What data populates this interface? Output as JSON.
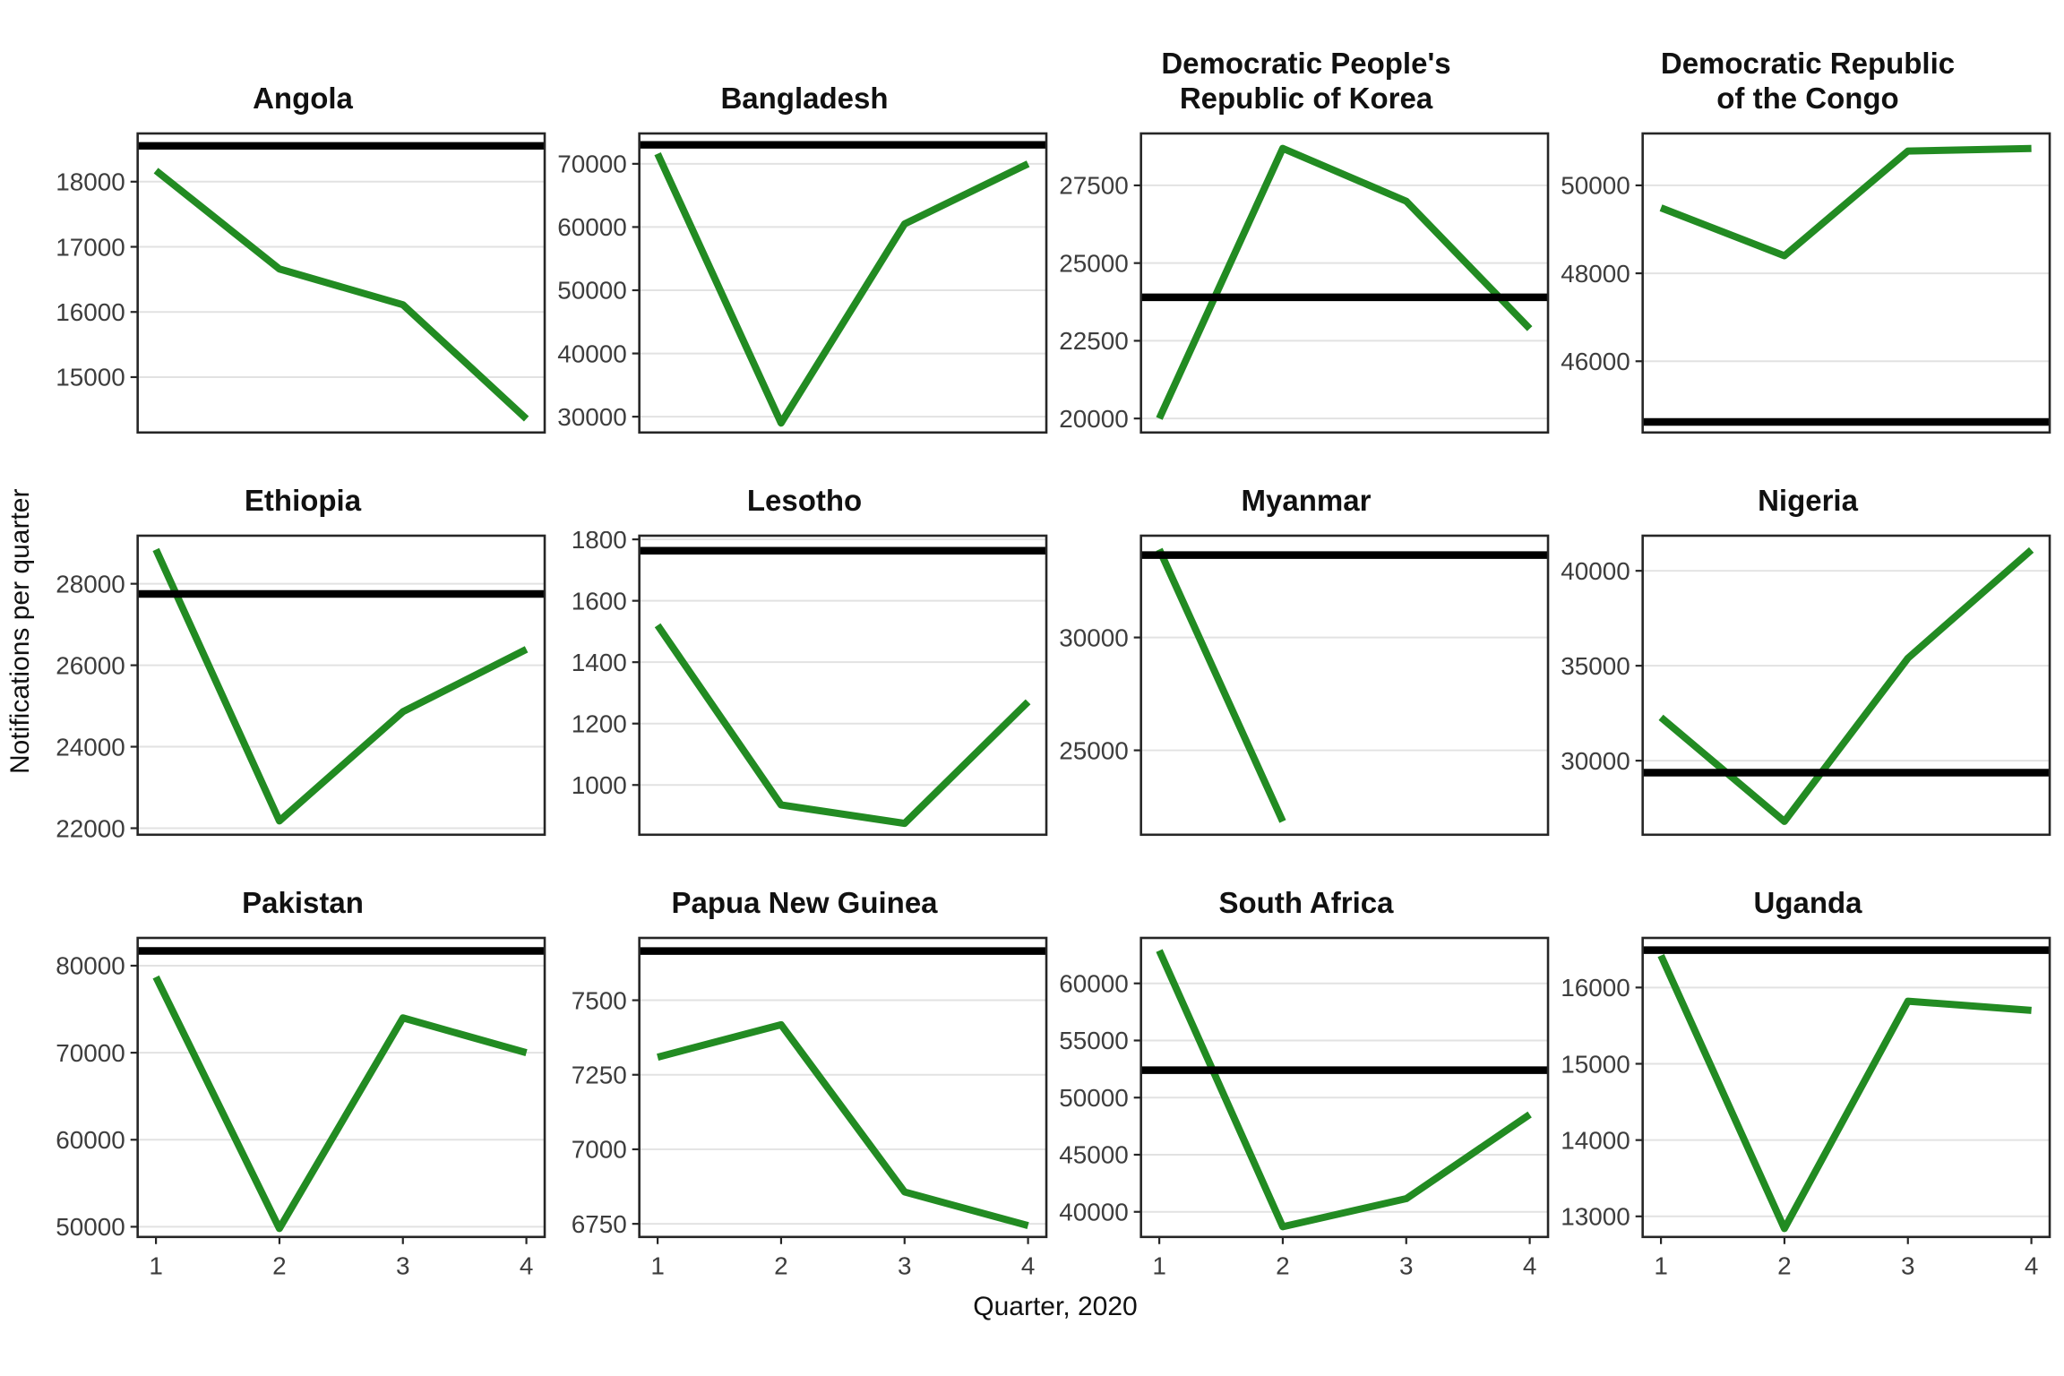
{
  "chart_data": {
    "type": "line",
    "title": "",
    "xlabel": "Quarter, 2020",
    "ylabel": "Notifications per quarter",
    "x": [
      1,
      2,
      3,
      4
    ],
    "x_tick_labels": [
      "1",
      "2",
      "3",
      "4"
    ],
    "legend": "none",
    "grid": "major-horizontal",
    "style": {
      "line_color": "#228B22",
      "reference_line_color": "#000000",
      "gridline_color": "#e2e2e2",
      "panel_border_color": "#262626",
      "tick_label_color": "#3d3d3d",
      "title_color": "#111111"
    },
    "facets": [
      {
        "country": "Angola",
        "values": [
          18170,
          16660,
          16110,
          14360
        ],
        "reference": 18550,
        "yticks": [
          15000,
          16000,
          17000,
          18000
        ],
        "ylim": [
          14150,
          18740
        ]
      },
      {
        "country": "Bangladesh",
        "values": [
          71600,
          29000,
          60500,
          70000
        ],
        "reference": 73000,
        "yticks": [
          30000,
          40000,
          50000,
          60000,
          70000
        ],
        "ylim": [
          27500,
          74800
        ]
      },
      {
        "country": "Democratic People's Republic of Korea",
        "title_lines": [
          "Democratic People's",
          "Republic of Korea"
        ],
        "values": [
          20000,
          28690,
          26990,
          22890
        ],
        "reference": 23900,
        "yticks": [
          20000,
          22500,
          25000,
          27500
        ],
        "ylim": [
          19550,
          29170
        ]
      },
      {
        "country": "Democratic Republic of the Congo",
        "title_lines": [
          "Democratic Republic",
          "of the Congo"
        ],
        "values": [
          49490,
          48400,
          50780,
          50840
        ],
        "reference": 44620,
        "yticks": [
          46000,
          48000,
          50000
        ],
        "ylim": [
          44380,
          51180
        ]
      },
      {
        "country": "Ethiopia",
        "values": [
          28840,
          22180,
          24860,
          26390
        ],
        "reference": 27750,
        "yticks": [
          22000,
          24000,
          26000,
          28000
        ],
        "ylim": [
          21840,
          29180
        ]
      },
      {
        "country": "Lesotho",
        "values": [
          1520,
          935,
          875,
          1271
        ],
        "reference": 1763,
        "yticks": [
          1000,
          1200,
          1400,
          1600,
          1800
        ],
        "ylim": [
          838,
          1812
        ]
      },
      {
        "country": "Myanmar",
        "values": [
          33900,
          21850,
          null,
          null
        ],
        "reference": 33650,
        "yticks": [
          25000,
          30000
        ],
        "ylim": [
          21260,
          34510
        ]
      },
      {
        "country": "Nigeria",
        "values": [
          32280,
          26800,
          35400,
          41100
        ],
        "reference": 29370,
        "yticks": [
          30000,
          35000,
          40000
        ],
        "ylim": [
          26100,
          41850
        ]
      },
      {
        "country": "Pakistan",
        "values": [
          78700,
          49800,
          74000,
          70000
        ],
        "reference": 81700,
        "yticks": [
          50000,
          60000,
          70000,
          80000
        ],
        "ylim": [
          48830,
          83190
        ]
      },
      {
        "country": "Papua New Guinea",
        "values": [
          7309,
          7418,
          6857,
          6744
        ],
        "reference": 7665,
        "yticks": [
          6750,
          7000,
          7250,
          7500
        ],
        "ylim": [
          6706,
          7709
        ]
      },
      {
        "country": "South Africa",
        "values": [
          62870,
          38700,
          41150,
          48520
        ],
        "reference": 52400,
        "yticks": [
          40000,
          45000,
          50000,
          55000,
          60000
        ],
        "ylim": [
          37800,
          63980
        ]
      },
      {
        "country": "Uganda",
        "values": [
          16420,
          12840,
          15820,
          15700
        ],
        "reference": 16490,
        "yticks": [
          13000,
          14000,
          15000,
          16000
        ],
        "ylim": [
          12730,
          16650
        ]
      }
    ]
  }
}
